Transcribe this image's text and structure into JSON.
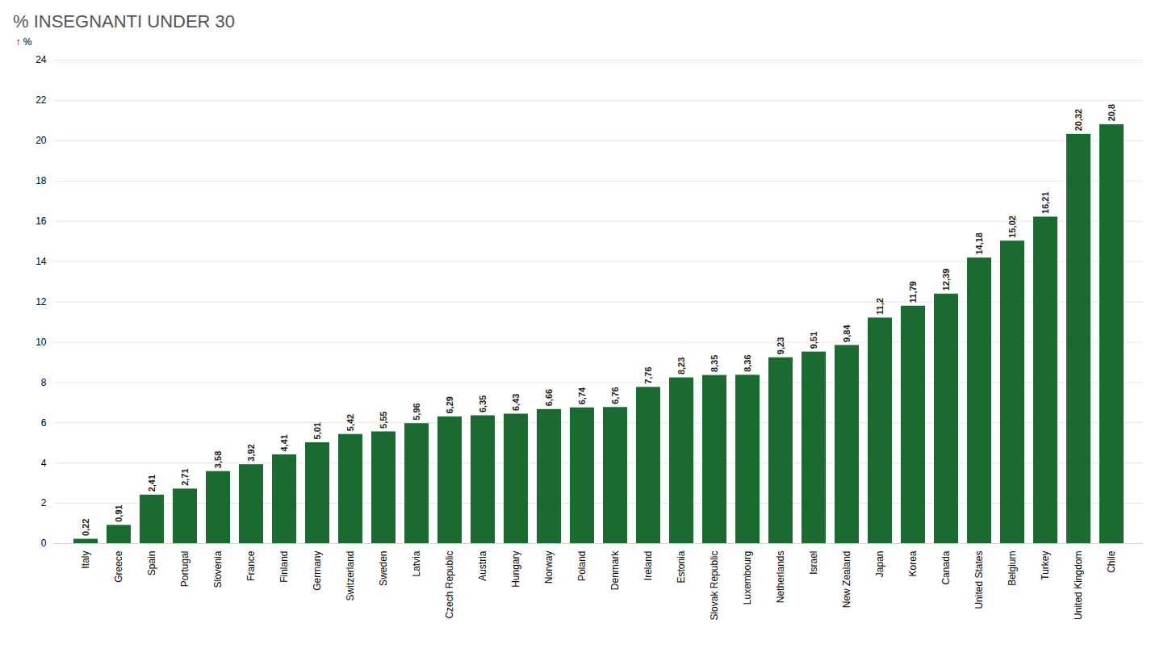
{
  "chart_data": {
    "type": "bar",
    "title": "% INSEGNANTI UNDER 30",
    "ylabel": "%",
    "categories": [
      "Italy",
      "Greece",
      "Spain",
      "Portugal",
      "Slovenia",
      "France",
      "Finland",
      "Germany",
      "Switzerland",
      "Sweden",
      "Latvia",
      "Czech Republic",
      "Austria",
      "Hungary",
      "Norway",
      "Poland",
      "Denmark",
      "Ireland",
      "Estonia",
      "Slovak Republic",
      "Luxembourg",
      "Netherlands",
      "Israel",
      "New Zealand",
      "Japan",
      "Korea",
      "Canada",
      "United States",
      "Belgium",
      "Turkey",
      "United Kingdom",
      "Chile"
    ],
    "values": [
      0.22,
      0.91,
      2.41,
      2.71,
      3.58,
      3.92,
      4.41,
      5.01,
      5.42,
      5.55,
      5.96,
      6.29,
      6.35,
      6.43,
      6.66,
      6.74,
      6.76,
      7.76,
      8.23,
      8.35,
      8.36,
      9.23,
      9.51,
      9.84,
      11.2,
      11.79,
      12.39,
      14.18,
      15.02,
      16.21,
      20.32,
      20.8
    ],
    "value_labels": [
      "0,22",
      "0,91",
      "2,41",
      "2,71",
      "3,58",
      "3,92",
      "4,41",
      "5,01",
      "5,42",
      "5,55",
      "5,96",
      "6,29",
      "6,35",
      "6,43",
      "6,66",
      "6,74",
      "6,76",
      "7,76",
      "8,23",
      "8,35",
      "8,36",
      "9,23",
      "9,51",
      "9,84",
      "11,2",
      "11,79",
      "12,39",
      "14,18",
      "15,02",
      "16,21",
      "20,32",
      "20,8"
    ],
    "color": "#1a6b2f",
    "ylim": [
      0,
      24
    ],
    "yticks": [
      0,
      2,
      4,
      6,
      8,
      10,
      12,
      14,
      16,
      18,
      20,
      22,
      24
    ],
    "grid": true,
    "data_labels": true
  }
}
